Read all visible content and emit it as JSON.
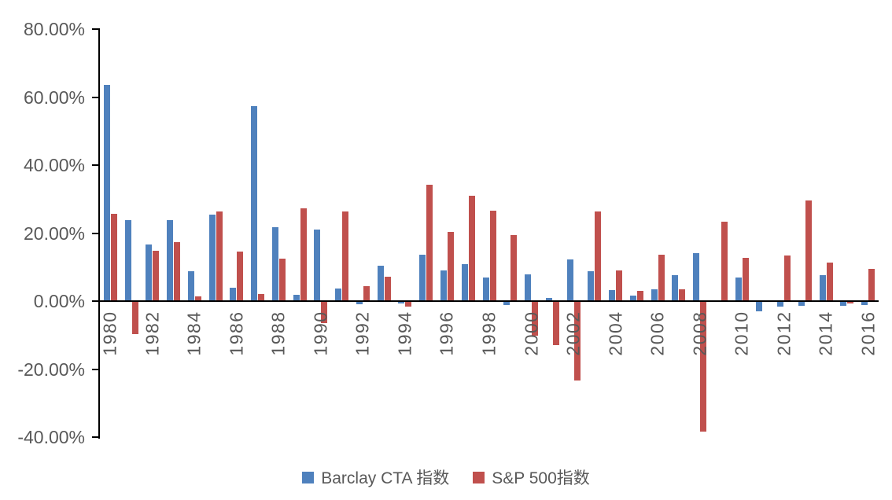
{
  "chart": {
    "background": "#ffffff",
    "axis_color": "#000000",
    "label_color": "#595959",
    "legend": [
      {
        "label": "Barclay CTA 指数",
        "color": "#4F81BD"
      },
      {
        "label": "S&P 500指数",
        "color": "#C0504D"
      }
    ]
  },
  "chart_data": {
    "type": "bar",
    "title": "",
    "xlabel": "",
    "ylabel": "",
    "grid": false,
    "legend_position": "bottom",
    "ylim": [
      -40,
      80
    ],
    "y_tick_values": [
      80,
      60,
      40,
      20,
      0,
      -20,
      -40
    ],
    "y_tick_labels": [
      "80.00%",
      "60.00%",
      "40.00%",
      "20.00%",
      "0.00%",
      "-20.00%",
      "-40.00%"
    ],
    "categories": [
      1980,
      1981,
      1982,
      1983,
      1984,
      1985,
      1986,
      1987,
      1988,
      1989,
      1990,
      1991,
      1992,
      1993,
      1994,
      1995,
      1996,
      1997,
      1998,
      1999,
      2000,
      2001,
      2002,
      2003,
      2004,
      2005,
      2006,
      2007,
      2008,
      2009,
      2010,
      2011,
      2012,
      2013,
      2014,
      2015,
      2016
    ],
    "x_tick_labels": [
      "1980",
      "1982",
      "1984",
      "1986",
      "1988",
      "1990",
      "1992",
      "1994",
      "1996",
      "1998",
      "2000",
      "2002",
      "2004",
      "2006",
      "2008",
      "2010",
      "2012",
      "2014",
      "2016"
    ],
    "series": [
      {
        "name": "Barclay CTA 指数",
        "color": "#4F81BD",
        "values": [
          63.69,
          23.9,
          16.68,
          23.75,
          8.74,
          25.5,
          3.82,
          57.27,
          21.76,
          1.8,
          21.02,
          3.73,
          -0.91,
          10.37,
          -0.65,
          13.64,
          9.12,
          10.89,
          7.01,
          -1.19,
          7.86,
          0.84,
          12.36,
          8.69,
          3.3,
          1.71,
          3.54,
          7.64,
          14.09,
          -0.1,
          7.05,
          -3.09,
          -1.7,
          -1.42,
          7.61,
          -1.5,
          -1.23
        ]
      },
      {
        "name": "S&P 500指数",
        "color": "#C0504D",
        "values": [
          25.77,
          -9.73,
          14.76,
          17.27,
          1.4,
          26.33,
          14.62,
          2.03,
          12.4,
          27.25,
          -6.56,
          26.31,
          4.46,
          7.06,
          -1.54,
          34.11,
          20.26,
          31.01,
          26.67,
          19.53,
          -10.14,
          -13.04,
          -23.37,
          26.38,
          8.99,
          3.0,
          13.62,
          3.53,
          -38.49,
          23.45,
          12.78,
          0.0,
          13.41,
          29.6,
          11.39,
          -0.73,
          9.54
        ]
      }
    ]
  }
}
